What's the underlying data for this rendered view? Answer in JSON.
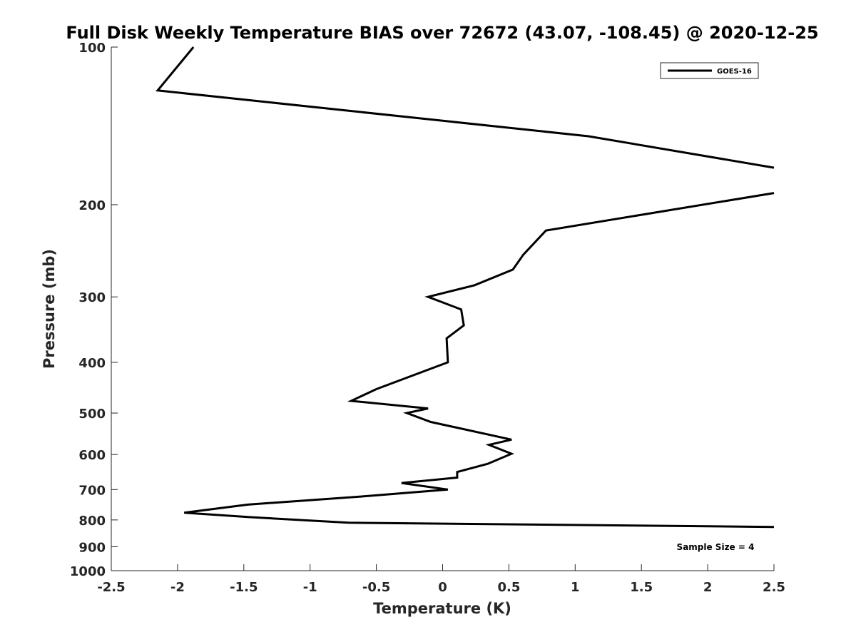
{
  "chart_data": {
    "type": "line",
    "title": "Full Disk Weekly Temperature BIAS over 72672 (43.07, -108.45) @ 2020-12-25",
    "xlabel": "Temperature (K)",
    "ylabel": "Pressure (mb)",
    "xlim": [
      -2.5,
      2.5
    ],
    "ylim": [
      100,
      1000
    ],
    "y_scale": "log",
    "y_reversed": true,
    "grid": false,
    "legend_position": "top-right",
    "x_ticks": [
      "-2.5",
      "-2",
      "-1.5",
      "-1",
      "-0.5",
      "0",
      "0.5",
      "1",
      "1.5",
      "2",
      "2.5"
    ],
    "y_ticks": [
      "100",
      "200",
      "300",
      "400",
      "500",
      "600",
      "700",
      "800",
      "900",
      "1000"
    ],
    "annotation": "Sample Size = 4",
    "line_color": "#000000",
    "series": [
      {
        "name": "GOES-16",
        "segments": [
          [
            {
              "x": -1.88,
              "y": 100
            },
            {
              "x": -2.15,
              "y": 121
            },
            {
              "x": 1.1,
              "y": 148
            },
            {
              "x": 2.5,
              "y": 170
            }
          ],
          [
            {
              "x": 2.5,
              "y": 190
            },
            {
              "x": 0.78,
              "y": 224
            },
            {
              "x": 0.61,
              "y": 249
            },
            {
              "x": 0.53,
              "y": 266
            },
            {
              "x": 0.24,
              "y": 285
            },
            {
              "x": -0.11,
              "y": 300
            },
            {
              "x": 0.14,
              "y": 317
            },
            {
              "x": 0.16,
              "y": 340
            },
            {
              "x": 0.03,
              "y": 360
            },
            {
              "x": 0.04,
              "y": 400
            },
            {
              "x": -0.5,
              "y": 450
            },
            {
              "x": -0.69,
              "y": 474
            },
            {
              "x": -0.11,
              "y": 490
            },
            {
              "x": -0.27,
              "y": 500
            },
            {
              "x": -0.09,
              "y": 520
            },
            {
              "x": 0.52,
              "y": 562
            },
            {
              "x": 0.35,
              "y": 575
            },
            {
              "x": 0.52,
              "y": 598
            },
            {
              "x": 0.34,
              "y": 625
            },
            {
              "x": 0.11,
              "y": 648
            },
            {
              "x": 0.11,
              "y": 664
            },
            {
              "x": -0.31,
              "y": 680
            },
            {
              "x": 0.04,
              "y": 700
            },
            {
              "x": -0.56,
              "y": 720
            },
            {
              "x": -1.47,
              "y": 748
            },
            {
              "x": -1.95,
              "y": 775
            },
            {
              "x": -1.46,
              "y": 790
            },
            {
              "x": -0.71,
              "y": 810
            },
            {
              "x": 2.5,
              "y": 825
            }
          ]
        ]
      }
    ]
  }
}
